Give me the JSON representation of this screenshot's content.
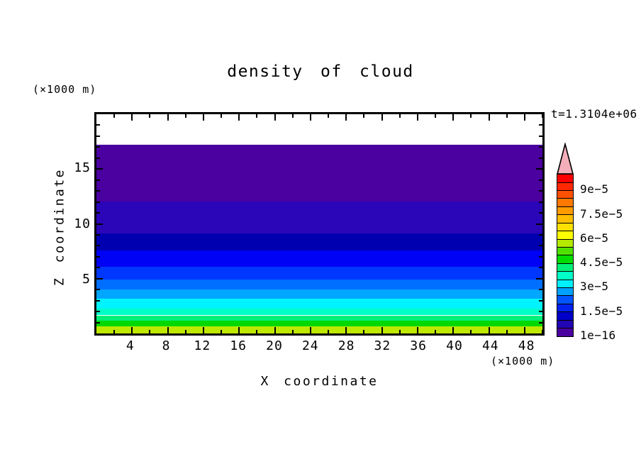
{
  "title": "density of cloud",
  "time_label": "t=1.3104e+06",
  "colors": {
    "background": "#ffffff",
    "frame": "#000000",
    "text": "#000000",
    "overflow_arrow": "#F3AEB9"
  },
  "axes": {
    "x": {
      "title": "X coordinate",
      "unit": "(×1000 m)",
      "tick_labels": [
        "4",
        "8",
        "12",
        "16",
        "20",
        "24",
        "28",
        "32",
        "36",
        "40",
        "44",
        "48"
      ]
    },
    "y": {
      "title": "Z coordinate",
      "unit": "(×1000 m)",
      "tick_labels": [
        "5",
        "10",
        "15"
      ]
    }
  },
  "chart_data": {
    "type": "filled-contour",
    "title": "density of cloud",
    "xlabel": "X coordinate",
    "ylabel": "Z coordinate",
    "x_unit": "(×1000 m)",
    "y_unit": "(×1000 m)",
    "time_annotation": "t=1.3104e+06",
    "xlim": [
      0,
      50
    ],
    "ylim": [
      0,
      20
    ],
    "grid": false,
    "x_major_ticks": [
      4,
      8,
      12,
      16,
      20,
      24,
      28,
      32,
      36,
      40,
      44,
      48
    ],
    "x_minor_ticks": [
      2,
      6,
      10,
      14,
      18,
      22,
      26,
      30,
      34,
      38,
      42,
      46,
      50
    ],
    "y_major_ticks": [
      5,
      10,
      15
    ],
    "y_minor_ticks": [
      1,
      2,
      3,
      4,
      6,
      7,
      8,
      9,
      11,
      12,
      13,
      14,
      16,
      17,
      18,
      19
    ],
    "field_description": "horizontally uniform cloud-density layers decreasing with height; clear air (white) above cloud top at z≈17.2 (×1000 m)",
    "bands": [
      {
        "z_top": 17.2,
        "z_bottom": 12.05,
        "level_min": 1e-16,
        "level_max": 5e-06,
        "color": "#4B00A0"
      },
      {
        "z_top": 12.05,
        "z_bottom": 9.1,
        "level_min": 5e-06,
        "level_max": 1e-05,
        "color": "#2A06B8"
      },
      {
        "z_top": 9.1,
        "z_bottom": 7.6,
        "level_min": 1e-05,
        "level_max": 1.5e-05,
        "color": "#0000B0"
      },
      {
        "z_top": 7.6,
        "z_bottom": 6.1,
        "level_min": 1.5e-05,
        "level_max": 2e-05,
        "color": "#0002F5"
      },
      {
        "z_top": 6.1,
        "z_bottom": 4.95,
        "level_min": 2e-05,
        "level_max": 2.5e-05,
        "color": "#0037FF"
      },
      {
        "z_top": 4.95,
        "z_bottom": 4.0,
        "level_min": 2.5e-05,
        "level_max": 3e-05,
        "color": "#006EFF"
      },
      {
        "z_top": 4.0,
        "z_bottom": 3.17,
        "level_min": 3e-05,
        "level_max": 3.5e-05,
        "color": "#00A6FF"
      },
      {
        "z_top": 3.17,
        "z_bottom": 2.29,
        "level_min": 3.5e-05,
        "level_max": 4e-05,
        "color": "#00F4FF"
      },
      {
        "z_top": 2.29,
        "z_bottom": 1.65,
        "level_min": 4e-05,
        "level_max": 4.5e-05,
        "color": "#00FFC8"
      },
      {
        "z_top": 1.65,
        "z_bottom": 1.14,
        "level_min": 4.5e-05,
        "level_max": 5e-05,
        "color": "#00F078"
      },
      {
        "z_top": 1.14,
        "z_bottom": 0.63,
        "level_min": 5e-05,
        "level_max": 5.5e-05,
        "color": "#00D800"
      },
      {
        "z_top": 0.63,
        "z_bottom": 0.0,
        "level_min": 5.5e-05,
        "level_max": 6e-05,
        "color": "#BEE800"
      }
    ],
    "colorbar": {
      "level_min": 1e-16,
      "level_max": 0.0001,
      "step": 5e-06,
      "labels": [
        "1e−16",
        "1.5e−5",
        "3e−5",
        "4.5e−5",
        "6e−5",
        "7.5e−5",
        "9e−5"
      ],
      "label_values": [
        1e-16,
        1.5e-05,
        3e-05,
        4.5e-05,
        6e-05,
        7.5e-05,
        9e-05
      ],
      "colors": [
        "#4B00A0",
        "#2206B4",
        "#0000C8",
        "#0022EE",
        "#0055FF",
        "#00A0FF",
        "#00F0FF",
        "#00FFC8",
        "#00F078",
        "#00DC00",
        "#50E000",
        "#B4E900",
        "#FFFF00",
        "#FFE100",
        "#FFBE00",
        "#FF9B00",
        "#FF7800",
        "#FF5000",
        "#FF2800",
        "#FB0000"
      ],
      "overflow_arrow_color": "#F3AEB9"
    }
  }
}
